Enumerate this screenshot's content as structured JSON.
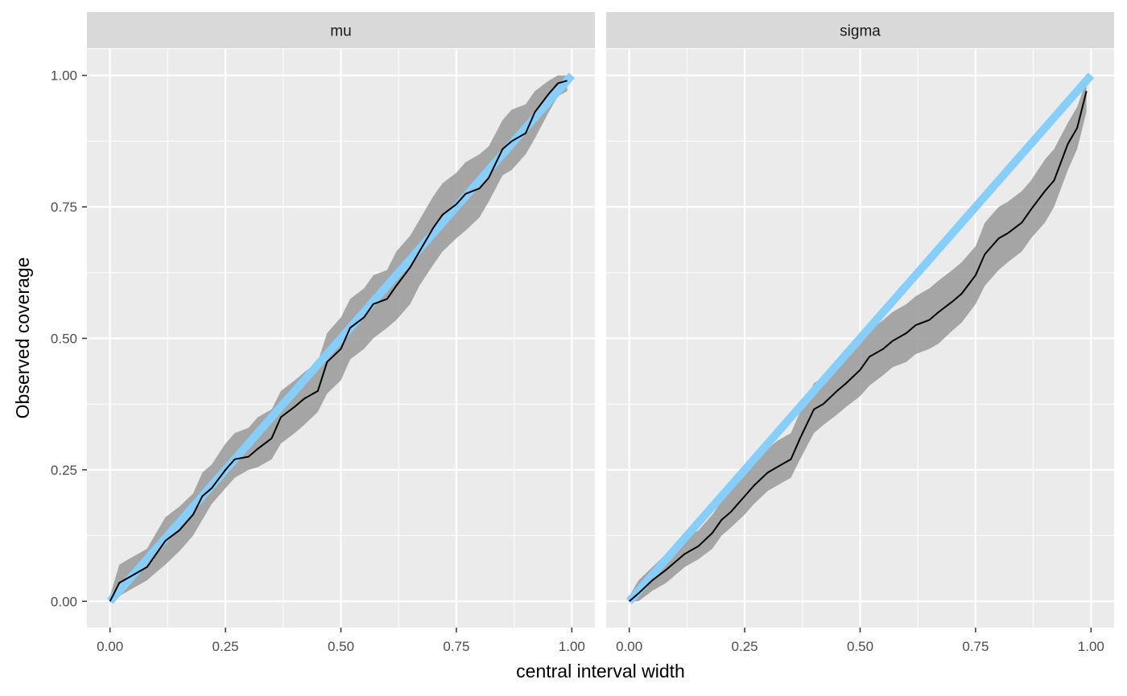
{
  "chart_data": {
    "type": "line",
    "xlabel": "central interval width",
    "ylabel": "Observed coverage",
    "xlim": [
      -0.05,
      1.05
    ],
    "ylim": [
      -0.05,
      1.05
    ],
    "x_ticks": [
      0,
      0.25,
      0.5,
      0.75,
      1
    ],
    "x_tick_labels": [
      "0.00",
      "0.25",
      "0.50",
      "0.75",
      "1.00"
    ],
    "y_ticks": [
      0,
      0.25,
      0.5,
      0.75,
      1
    ],
    "y_tick_labels": [
      "0.00",
      "0.25",
      "0.50",
      "0.75",
      "1.00"
    ],
    "grid": true,
    "colors": {
      "panel_bg": "#ebebeb",
      "strip_bg": "#d9d9d9",
      "ribbon": "#999999",
      "reference_line": "#87cefa",
      "observed_line": "#000000"
    },
    "panels": [
      {
        "title": "mu",
        "x": [
          0,
          0.02,
          0.05,
          0.08,
          0.1,
          0.12,
          0.15,
          0.18,
          0.2,
          0.22,
          0.25,
          0.27,
          0.3,
          0.32,
          0.35,
          0.37,
          0.4,
          0.42,
          0.45,
          0.47,
          0.5,
          0.52,
          0.55,
          0.57,
          0.6,
          0.62,
          0.65,
          0.67,
          0.7,
          0.72,
          0.75,
          0.77,
          0.8,
          0.82,
          0.85,
          0.87,
          0.9,
          0.92,
          0.95,
          0.97,
          0.99
        ],
        "observed": [
          0,
          0.035,
          0.05,
          0.065,
          0.09,
          0.115,
          0.135,
          0.165,
          0.2,
          0.215,
          0.25,
          0.27,
          0.275,
          0.29,
          0.31,
          0.35,
          0.37,
          0.385,
          0.4,
          0.455,
          0.48,
          0.52,
          0.54,
          0.565,
          0.575,
          0.6,
          0.635,
          0.665,
          0.71,
          0.735,
          0.755,
          0.775,
          0.785,
          0.805,
          0.86,
          0.875,
          0.89,
          0.93,
          0.965,
          0.985,
          0.99
        ],
        "lower": [
          0,
          0.01,
          0.025,
          0.04,
          0.055,
          0.07,
          0.095,
          0.125,
          0.155,
          0.185,
          0.215,
          0.235,
          0.25,
          0.255,
          0.27,
          0.3,
          0.32,
          0.335,
          0.36,
          0.395,
          0.42,
          0.46,
          0.48,
          0.5,
          0.52,
          0.535,
          0.565,
          0.6,
          0.64,
          0.665,
          0.69,
          0.705,
          0.73,
          0.76,
          0.81,
          0.82,
          0.85,
          0.88,
          0.93,
          0.96,
          0.97
        ],
        "upper": [
          0.01,
          0.07,
          0.085,
          0.1,
          0.13,
          0.16,
          0.18,
          0.205,
          0.245,
          0.26,
          0.3,
          0.32,
          0.33,
          0.35,
          0.365,
          0.4,
          0.42,
          0.435,
          0.455,
          0.51,
          0.54,
          0.575,
          0.595,
          0.62,
          0.63,
          0.665,
          0.695,
          0.725,
          0.77,
          0.795,
          0.815,
          0.835,
          0.85,
          0.865,
          0.915,
          0.935,
          0.945,
          0.97,
          0.99,
          1,
          1
        ]
      },
      {
        "title": "sigma",
        "x": [
          0,
          0.02,
          0.05,
          0.08,
          0.1,
          0.12,
          0.15,
          0.18,
          0.2,
          0.22,
          0.25,
          0.27,
          0.3,
          0.32,
          0.35,
          0.37,
          0.4,
          0.42,
          0.45,
          0.47,
          0.5,
          0.52,
          0.55,
          0.57,
          0.6,
          0.62,
          0.65,
          0.67,
          0.7,
          0.72,
          0.75,
          0.77,
          0.8,
          0.82,
          0.85,
          0.87,
          0.9,
          0.92,
          0.95,
          0.97,
          0.99
        ],
        "observed": [
          0,
          0.015,
          0.04,
          0.06,
          0.075,
          0.09,
          0.105,
          0.13,
          0.155,
          0.17,
          0.2,
          0.22,
          0.245,
          0.255,
          0.27,
          0.31,
          0.365,
          0.375,
          0.4,
          0.415,
          0.44,
          0.465,
          0.48,
          0.495,
          0.51,
          0.525,
          0.535,
          0.55,
          0.57,
          0.585,
          0.62,
          0.66,
          0.69,
          0.7,
          0.72,
          0.745,
          0.78,
          0.8,
          0.87,
          0.9,
          0.97
        ],
        "lower": [
          0,
          0,
          0.02,
          0.035,
          0.05,
          0.065,
          0.08,
          0.1,
          0.125,
          0.14,
          0.165,
          0.185,
          0.21,
          0.22,
          0.235,
          0.27,
          0.32,
          0.335,
          0.355,
          0.37,
          0.39,
          0.41,
          0.43,
          0.445,
          0.455,
          0.47,
          0.48,
          0.49,
          0.515,
          0.53,
          0.565,
          0.6,
          0.63,
          0.645,
          0.665,
          0.69,
          0.72,
          0.75,
          0.82,
          0.86,
          0.93
        ],
        "upper": [
          0.01,
          0.04,
          0.065,
          0.09,
          0.105,
          0.12,
          0.135,
          0.165,
          0.19,
          0.21,
          0.24,
          0.26,
          0.29,
          0.305,
          0.32,
          0.36,
          0.415,
          0.425,
          0.45,
          0.465,
          0.49,
          0.515,
          0.535,
          0.55,
          0.565,
          0.58,
          0.595,
          0.61,
          0.63,
          0.645,
          0.675,
          0.72,
          0.75,
          0.76,
          0.78,
          0.8,
          0.84,
          0.86,
          0.91,
          0.94,
          0.99
        ]
      }
    ]
  }
}
